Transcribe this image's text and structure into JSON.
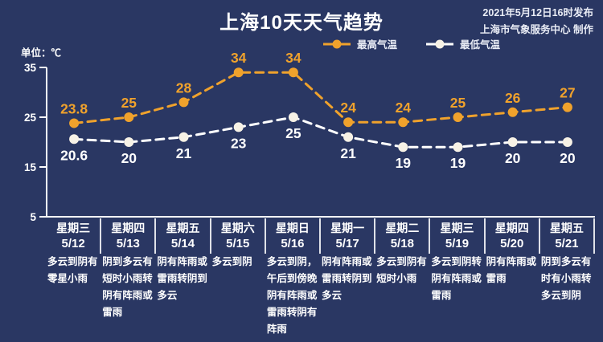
{
  "page": {
    "issued_line1": "2021年5月12日16时发布",
    "issued_line2": "上海市气象服务中心 制作",
    "unit_label": "单位：℃"
  },
  "colors": {
    "background": "#2A3763",
    "high_series": "#F0A22C",
    "low_series": "#FFFFFF",
    "low_dot_fill": "#F7F2E6",
    "axis": "#FFFFFF"
  },
  "icons": {
    "legend_high_marker": "dashed-line-with-dot",
    "legend_low_marker": "dashed-line-with-dot"
  },
  "chart_data": {
    "type": "line",
    "title": "上海10天天气趋势",
    "unit": "℃",
    "line_style": "dashed",
    "grid": false,
    "legend_position": "top-center",
    "y_ticks": [
      35,
      25,
      15,
      5
    ],
    "ylim": [
      5,
      35
    ],
    "x_categories": {
      "weekdays": [
        "星期三",
        "星期四",
        "星期五",
        "星期六",
        "星期日",
        "星期一",
        "星期二",
        "星期三",
        "星期四",
        "星期五"
      ],
      "dates": [
        "5/12",
        "5/13",
        "5/14",
        "5/15",
        "5/16",
        "5/17",
        "5/18",
        "5/19",
        "5/20",
        "5/21"
      ]
    },
    "series": [
      {
        "name": "最高气温",
        "color": "#F0A22C",
        "values": [
          23.8,
          25,
          28,
          34,
          34,
          24,
          24,
          25,
          26,
          27
        ]
      },
      {
        "name": "最低气温",
        "color": "#FFFFFF",
        "values": [
          20.6,
          20,
          21,
          23,
          25,
          21,
          19,
          19,
          20,
          20
        ]
      }
    ],
    "descriptions": [
      "多云到阴有零星小雨",
      "阴到多云有短时小雨转阴有阵雨或雷雨",
      "阴有阵雨或雷雨转阴到多云",
      "多云到阴",
      "多云到阴，午后到傍晚阴有阵雨或雷雨转阴有阵雨",
      "阴有阵雨或雷雨转阴到多云",
      "多云到阴有短时小雨",
      "多云到阴转阴有阵雨或雷雨",
      "阴有阵雨或雷雨",
      "阴到多云有时有小雨转多云到阴"
    ]
  }
}
